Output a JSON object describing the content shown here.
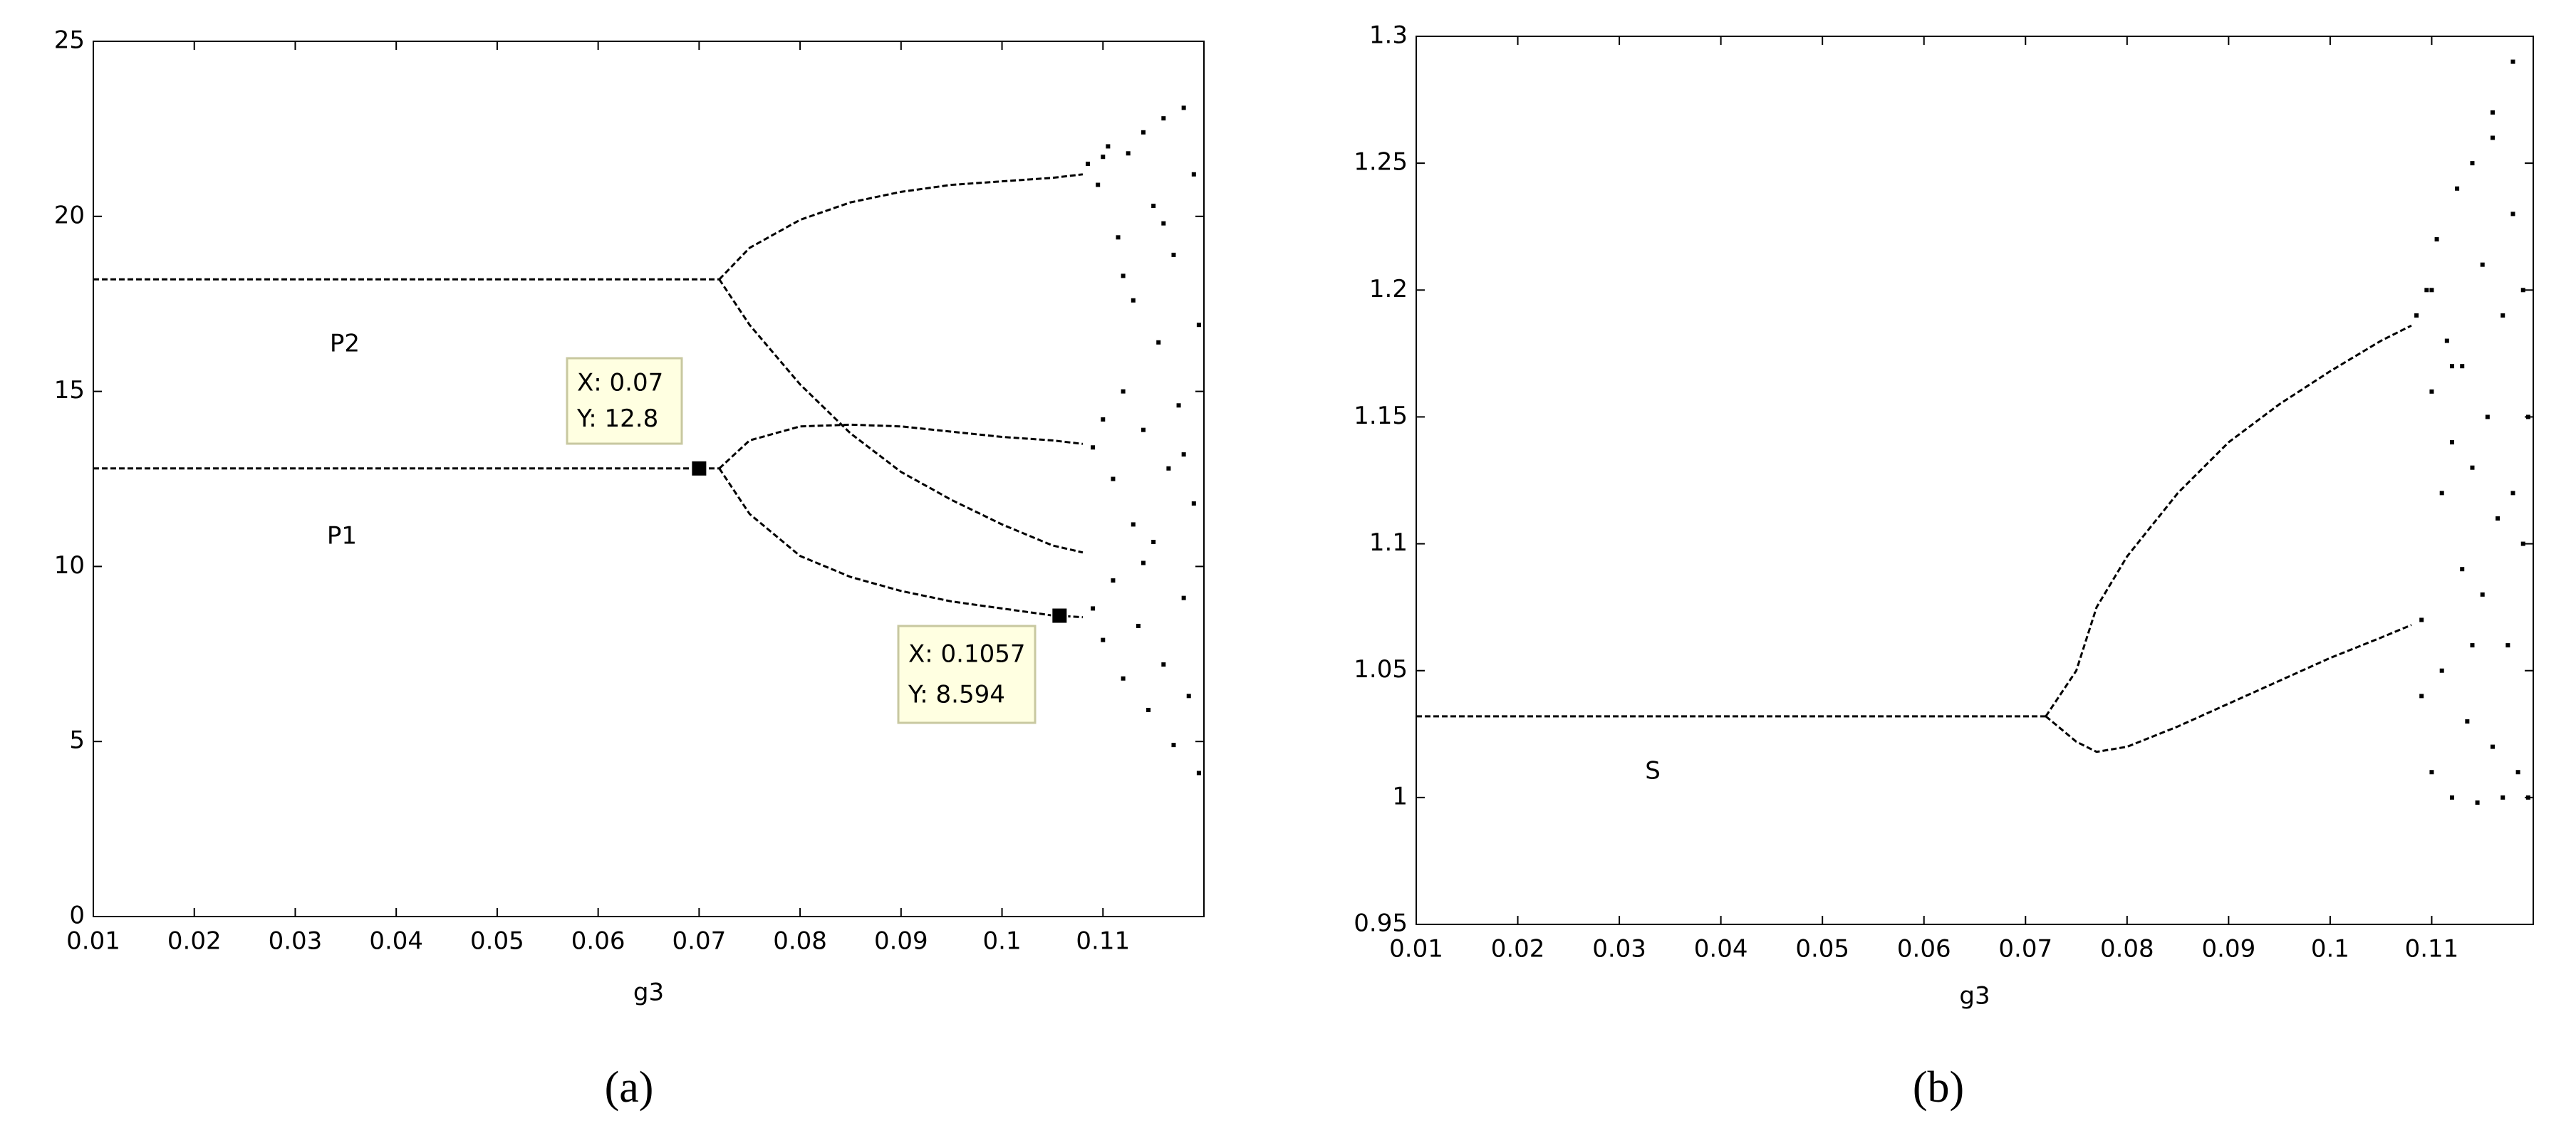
{
  "chart_data": [
    {
      "type": "scatter",
      "label": "(a)",
      "xlabel": "g3",
      "color": "#000000",
      "xlim": [
        0.01,
        0.12
      ],
      "xticks": [
        0.01,
        0.02,
        0.03,
        0.04,
        0.05,
        0.06,
        0.07,
        0.08,
        0.09,
        0.1,
        0.11
      ],
      "ylim": [
        0,
        25
      ],
      "yticks": [
        0,
        5,
        10,
        15,
        20,
        25
      ],
      "annotations": [
        "P2",
        "P1"
      ],
      "datatips": [
        {
          "x": 0.07,
          "y": 12.8,
          "text": [
            "X: 0.07",
            "Y: 12.8"
          ]
        },
        {
          "x": 0.1057,
          "y": 8.594,
          "text": [
            "X: 0.1057",
            "Y: 8.594"
          ]
        }
      ],
      "series": [
        {
          "line": "dashed",
          "x": [
            0.01,
            0.072
          ],
          "values": [
            18.2,
            18.2
          ]
        },
        {
          "line": "dashed",
          "x": [
            0.072,
            0.075,
            0.08,
            0.085,
            0.09,
            0.095,
            0.1,
            0.105,
            0.108
          ],
          "values": [
            18.2,
            19.1,
            19.9,
            20.4,
            20.7,
            20.9,
            21.0,
            21.1,
            21.2
          ]
        },
        {
          "line": "dashed",
          "x": [
            0.072,
            0.075,
            0.08,
            0.085,
            0.09,
            0.095,
            0.1,
            0.105,
            0.108
          ],
          "values": [
            18.2,
            16.9,
            15.2,
            13.8,
            12.7,
            11.9,
            11.2,
            10.6,
            10.4
          ]
        },
        {
          "line": "dashed",
          "x": [
            0.01,
            0.072
          ],
          "values": [
            12.8,
            12.8
          ]
        },
        {
          "line": "dashed",
          "x": [
            0.072,
            0.075,
            0.08,
            0.085,
            0.09,
            0.095,
            0.1,
            0.105,
            0.108
          ],
          "values": [
            12.8,
            13.6,
            14.0,
            14.05,
            14.0,
            13.85,
            13.7,
            13.6,
            13.5
          ]
        },
        {
          "line": "dashed",
          "x": [
            0.072,
            0.075,
            0.08,
            0.085,
            0.09,
            0.095,
            0.1,
            0.105,
            0.108
          ],
          "values": [
            12.8,
            11.5,
            10.3,
            9.7,
            9.3,
            9.0,
            8.8,
            8.6,
            8.55
          ]
        },
        {
          "line": "none",
          "x": [
            0.1085,
            0.109,
            0.109,
            0.1095,
            0.11,
            0.11,
            0.1105,
            0.111,
            0.111,
            0.1115,
            0.112,
            0.112,
            0.1125,
            0.113,
            0.113,
            0.1135,
            0.114,
            0.114,
            0.1145,
            0.115,
            0.115,
            0.1155,
            0.116,
            0.116,
            0.1165,
            0.117,
            0.117,
            0.1175,
            0.118,
            0.118,
            0.1185,
            0.119,
            0.119,
            0.1195,
            0.1195,
            0.112,
            0.114,
            0.116,
            0.118,
            0.11
          ],
          "values": [
            21.5,
            13.4,
            8.8,
            20.9,
            14.2,
            7.9,
            22.0,
            12.5,
            9.6,
            19.4,
            15.0,
            6.8,
            21.8,
            11.2,
            17.6,
            8.3,
            22.4,
            13.9,
            5.9,
            20.3,
            10.7,
            16.4,
            7.2,
            22.8,
            12.8,
            4.9,
            18.9,
            14.6,
            9.1,
            23.1,
            6.3,
            21.2,
            11.8,
            4.1,
            16.9,
            18.3,
            10.1,
            19.8,
            13.2,
            21.7
          ]
        }
      ]
    },
    {
      "type": "scatter",
      "label": "(b)",
      "xlabel": "g3",
      "color": "#000000",
      "xlim": [
        0.01,
        0.12
      ],
      "xticks": [
        0.01,
        0.02,
        0.03,
        0.04,
        0.05,
        0.06,
        0.07,
        0.08,
        0.09,
        0.1,
        0.11
      ],
      "ylim": [
        0.95,
        1.3
      ],
      "yticks": [
        0.95,
        1,
        1.05,
        1.1,
        1.15,
        1.2,
        1.25,
        1.3
      ],
      "annotations": [
        "S"
      ],
      "datatips": [],
      "series": [
        {
          "line": "dashed",
          "x": [
            0.01,
            0.072
          ],
          "values": [
            1.032,
            1.032
          ]
        },
        {
          "line": "dashed",
          "x": [
            0.072,
            0.075,
            0.077,
            0.08,
            0.085,
            0.09,
            0.095,
            0.1,
            0.105,
            0.108
          ],
          "values": [
            1.032,
            1.05,
            1.075,
            1.095,
            1.12,
            1.14,
            1.155,
            1.168,
            1.18,
            1.186
          ]
        },
        {
          "line": "dashed",
          "x": [
            0.072,
            0.075,
            0.077,
            0.08,
            0.085,
            0.09,
            0.095,
            0.1,
            0.105,
            0.108
          ],
          "values": [
            1.032,
            1.022,
            1.018,
            1.02,
            1.028,
            1.037,
            1.046,
            1.055,
            1.063,
            1.068
          ]
        },
        {
          "line": "none",
          "x": [
            0.1085,
            0.109,
            0.109,
            0.1095,
            0.11,
            0.11,
            0.1105,
            0.111,
            0.111,
            0.1115,
            0.112,
            0.112,
            0.1125,
            0.113,
            0.113,
            0.1135,
            0.114,
            0.114,
            0.1145,
            0.115,
            0.115,
            0.1155,
            0.116,
            0.116,
            0.1165,
            0.117,
            0.117,
            0.1175,
            0.118,
            0.118,
            0.1185,
            0.119,
            0.119,
            0.1195,
            0.1195,
            0.112,
            0.114,
            0.116,
            0.118,
            0.11
          ],
          "values": [
            1.19,
            1.07,
            1.04,
            1.2,
            1.16,
            1.01,
            1.22,
            1.12,
            1.05,
            1.18,
            1.14,
            1.0,
            1.24,
            1.09,
            1.17,
            1.03,
            1.25,
            1.13,
            0.998,
            1.21,
            1.08,
            1.15,
            1.02,
            1.27,
            1.11,
            1.0,
            1.19,
            1.06,
            1.23,
            1.29,
            1.01,
            1.2,
            1.1,
            1.0,
            1.15,
            1.17,
            1.06,
            1.26,
            1.12,
            1.2
          ]
        }
      ]
    }
  ]
}
